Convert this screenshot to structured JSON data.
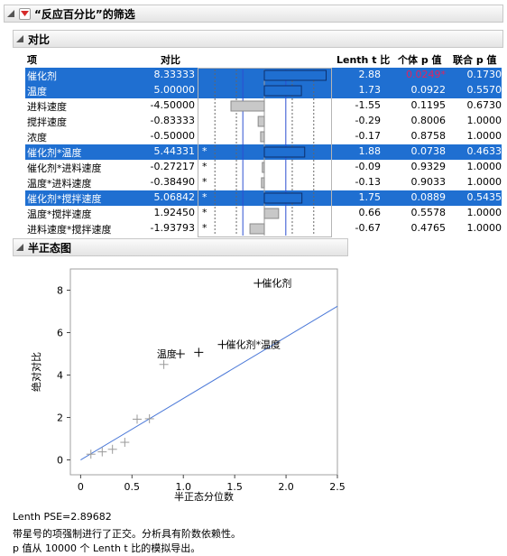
{
  "panel": {
    "title": "“反应百分比”的筛选"
  },
  "contrasts": {
    "title": "对比",
    "headers": {
      "term": "项",
      "contrast": "对比",
      "lenth_t": "Lenth t 比",
      "ind_p": "个体 p 值",
      "sim_p": "联合 p 值"
    },
    "rows": [
      {
        "term": "催化剂",
        "contrast": "8.33333",
        "star": "",
        "t": "2.88",
        "p_ind": "0.0249*",
        "p_sim": "0.1730",
        "selected": true,
        "p_red": true,
        "bar": 8.33333
      },
      {
        "term": "温度",
        "contrast": "5.00000",
        "star": "",
        "t": "1.73",
        "p_ind": "0.0922",
        "p_sim": "0.5570",
        "selected": true,
        "p_red": false,
        "bar": 5.0
      },
      {
        "term": "进料速度",
        "contrast": "-4.50000",
        "star": "",
        "t": "-1.55",
        "p_ind": "0.1195",
        "p_sim": "0.6730",
        "selected": false,
        "p_red": false,
        "bar": -4.5
      },
      {
        "term": "搅拌速度",
        "contrast": "-0.83333",
        "star": "",
        "t": "-0.29",
        "p_ind": "0.8006",
        "p_sim": "1.0000",
        "selected": false,
        "p_red": false,
        "bar": -0.83333
      },
      {
        "term": "浓度",
        "contrast": "-0.50000",
        "star": "",
        "t": "-0.17",
        "p_ind": "0.8758",
        "p_sim": "1.0000",
        "selected": false,
        "p_red": false,
        "bar": -0.5
      },
      {
        "term": "催化剂*温度",
        "contrast": "5.44331",
        "star": "*",
        "t": "1.88",
        "p_ind": "0.0738",
        "p_sim": "0.4633",
        "selected": true,
        "p_red": false,
        "bar": 5.44331
      },
      {
        "term": "催化剂*进料速度",
        "contrast": "-0.27217",
        "star": "*",
        "t": "-0.09",
        "p_ind": "0.9329",
        "p_sim": "1.0000",
        "selected": false,
        "p_red": false,
        "bar": -0.27217
      },
      {
        "term": "温度*进料速度",
        "contrast": "-0.38490",
        "star": "*",
        "t": "-0.13",
        "p_ind": "0.9033",
        "p_sim": "1.0000",
        "selected": false,
        "p_red": false,
        "bar": -0.3849
      },
      {
        "term": "催化剂*搅拌速度",
        "contrast": "5.06842",
        "star": "*",
        "t": "1.75",
        "p_ind": "0.0889",
        "p_sim": "0.5435",
        "selected": true,
        "p_red": false,
        "bar": 5.06842
      },
      {
        "term": "温度*搅拌速度",
        "contrast": "1.92450",
        "star": "*",
        "t": "0.66",
        "p_ind": "0.5578",
        "p_sim": "1.0000",
        "selected": false,
        "p_red": false,
        "bar": 1.9245
      },
      {
        "term": "进料速度*搅拌速度",
        "contrast": "-1.93793",
        "star": "*",
        "t": "-0.67",
        "p_ind": "0.4765",
        "p_sim": "1.0000",
        "selected": false,
        "p_red": false,
        "bar": -1.93793
      }
    ]
  },
  "halfnormal": {
    "title": "半正态图",
    "chart_data": {
      "type": "scatter",
      "xlabel": "半正态分位数",
      "ylabel": "绝对对比",
      "xlim": [
        -0.1,
        2.5
      ],
      "ylim": [
        -0.7,
        9.0
      ],
      "xticks": [
        "0",
        "0.5",
        "1.0",
        "1.5",
        "2.0",
        "2.5"
      ],
      "yticks": [
        "0",
        "2",
        "4",
        "6",
        "8"
      ],
      "points": [
        {
          "x": 0.1,
          "y": 0.27,
          "label": "",
          "highlight": false
        },
        {
          "x": 0.21,
          "y": 0.38,
          "label": "",
          "highlight": false
        },
        {
          "x": 0.31,
          "y": 0.5,
          "label": "",
          "highlight": false
        },
        {
          "x": 0.43,
          "y": 0.83,
          "label": "",
          "highlight": false
        },
        {
          "x": 0.55,
          "y": 1.92,
          "label": "",
          "highlight": false
        },
        {
          "x": 0.67,
          "y": 1.94,
          "label": "",
          "highlight": false
        },
        {
          "x": 0.81,
          "y": 4.5,
          "label": "",
          "highlight": false
        },
        {
          "x": 0.97,
          "y": 5.0,
          "label": "温度",
          "highlight": true
        },
        {
          "x": 1.15,
          "y": 5.07,
          "label": "",
          "highlight": true
        },
        {
          "x": 1.38,
          "y": 5.44,
          "label": "催化剂*温度",
          "highlight": true
        },
        {
          "x": 1.73,
          "y": 8.33,
          "label": "催化剂",
          "highlight": true
        }
      ],
      "line": {
        "slope": 2.89682
      }
    }
  },
  "footer": {
    "line1": "Lenth PSE=2.89682",
    "line2": "带星号的项强制进行了正交。分析具有阶数依赖性。",
    "line3": "p 值从 10000 个 Lenth t 比的模拟导出。"
  }
}
